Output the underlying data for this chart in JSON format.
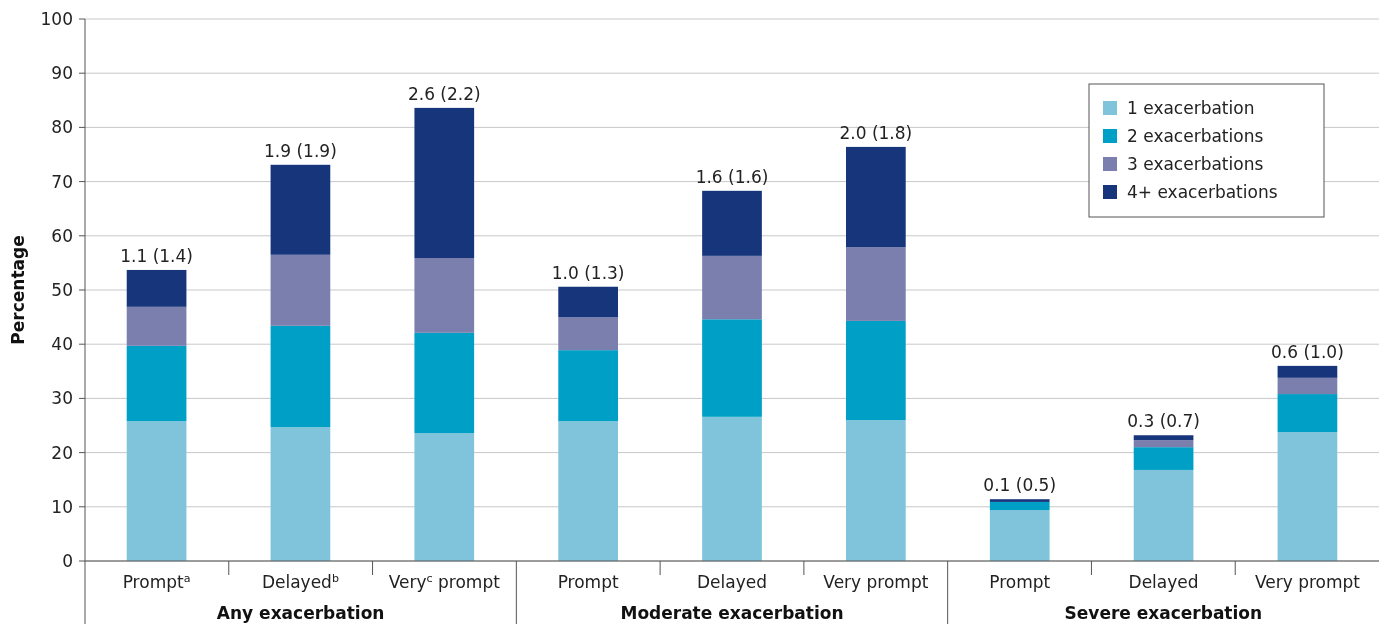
{
  "chart_data": {
    "type": "bar",
    "stacked": true,
    "ylabel": "Percentage",
    "categories": [
      "Prompt$^{a}$",
      "Delayed$^{b}$",
      "Very$^{c}$ prompt",
      "Prompt",
      "Delayed",
      "Very prompt",
      "Prompt",
      "Delayed",
      "Very prompt"
    ],
    "annotations": [
      "Any exacerbation",
      "Moderate exacerbation",
      "Severe exacerbation"
    ],
    "series": [
      {
        "name": "1 exacerbation",
        "color": "#80c4db",
        "values": [
          25.8,
          24.7,
          23.6,
          25.8,
          26.6,
          26.0,
          9.4,
          16.8,
          23.8
        ]
      },
      {
        "name": "2 exacerbations",
        "color": "#00a0c6",
        "values": [
          13.9,
          18.7,
          18.5,
          13.1,
          18.0,
          18.3,
          1.5,
          4.2,
          7.0
        ]
      },
      {
        "name": "3 exacerbations",
        "color": "#7a7fad",
        "values": [
          7.2,
          13.1,
          13.8,
          6.1,
          11.7,
          13.6,
          0,
          1.3,
          3.0
        ]
      },
      {
        "name": "4+ exacerbations",
        "color": "#17357b",
        "values": [
          6.8,
          16.6,
          27.7,
          5.6,
          12.0,
          18.5,
          0.5,
          0.9,
          2.2
        ]
      }
    ],
    "totals": [
      "1.1 (1.4)",
      "1.9 (1.9)",
      "2.6 (2.2)",
      "1.0 (1.3)",
      "1.6 (1.6)",
      "2.0 (1.8)",
      "0.1 (0.5)",
      "0.3 (0.7)",
      "0.6 (1.0)"
    ],
    "ylim": [
      0,
      100
    ],
    "yticks": [
      0,
      10,
      20,
      30,
      40,
      50,
      60,
      70,
      80,
      90,
      100
    ],
    "grid": "y",
    "legend": "top right"
  }
}
